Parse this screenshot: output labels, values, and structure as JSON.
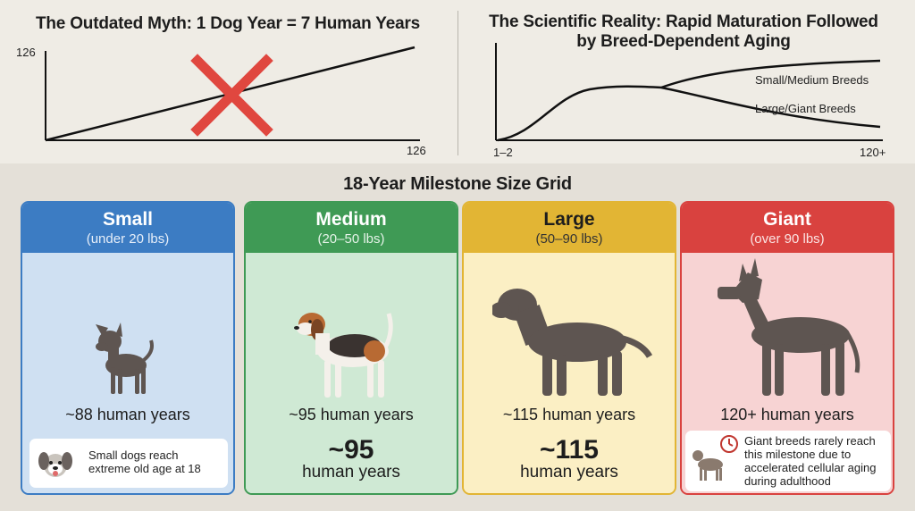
{
  "myth": {
    "title": "The Outdated Myth: 1 Dog Year = 7 Human Years",
    "y_tick": "126",
    "x_tick": "126",
    "cross_color": "#e0473f"
  },
  "reality": {
    "title_line1": "The Scientific Reality: Rapid Maturation Followed",
    "title_line2": "by Breed-Dependent Aging",
    "series_small": "Small/Medium Breeds",
    "series_large": "Large/Giant Breeds",
    "x_start": "1–2",
    "x_end": "120+"
  },
  "grid": {
    "title": "18-Year Milestone Size Grid",
    "cards": [
      {
        "name": "Small",
        "range": "(under 20 lbs)",
        "human_years": "~88 human years",
        "big": "",
        "big_sub": "",
        "note": "Small dogs reach extreme old age at 18",
        "header_color": "#3c7cc3",
        "body_color": "#cfe0f2",
        "border_color": "#3c7cc3",
        "icon": "dog-face-icon"
      },
      {
        "name": "Medium",
        "range": "(20–50 lbs)",
        "human_years": "~95 human years",
        "big": "~95",
        "big_sub": "human years",
        "note": "",
        "header_color": "#3f9a55",
        "body_color": "#cfe9d4",
        "border_color": "#3f9a55",
        "icon": "beagle-icon"
      },
      {
        "name": "Large",
        "range": "(50–90 lbs)",
        "human_years": "~115 human years",
        "big": "~115",
        "big_sub": "human years",
        "note": "",
        "header_color": "#e2b534",
        "body_color": "#fbefc4",
        "border_color": "#e2b534",
        "icon": "labrador-icon"
      },
      {
        "name": "Giant",
        "range": "(over 90 lbs)",
        "human_years": "120+ human years",
        "big": "",
        "big_sub": "",
        "note": "Giant breeds rarely reach this milestone due to accelerated cellular aging during adulthood",
        "header_color": "#d9423f",
        "body_color": "#f7d3d3",
        "border_color": "#d9423f",
        "icon": "clock-icon"
      }
    ]
  }
}
